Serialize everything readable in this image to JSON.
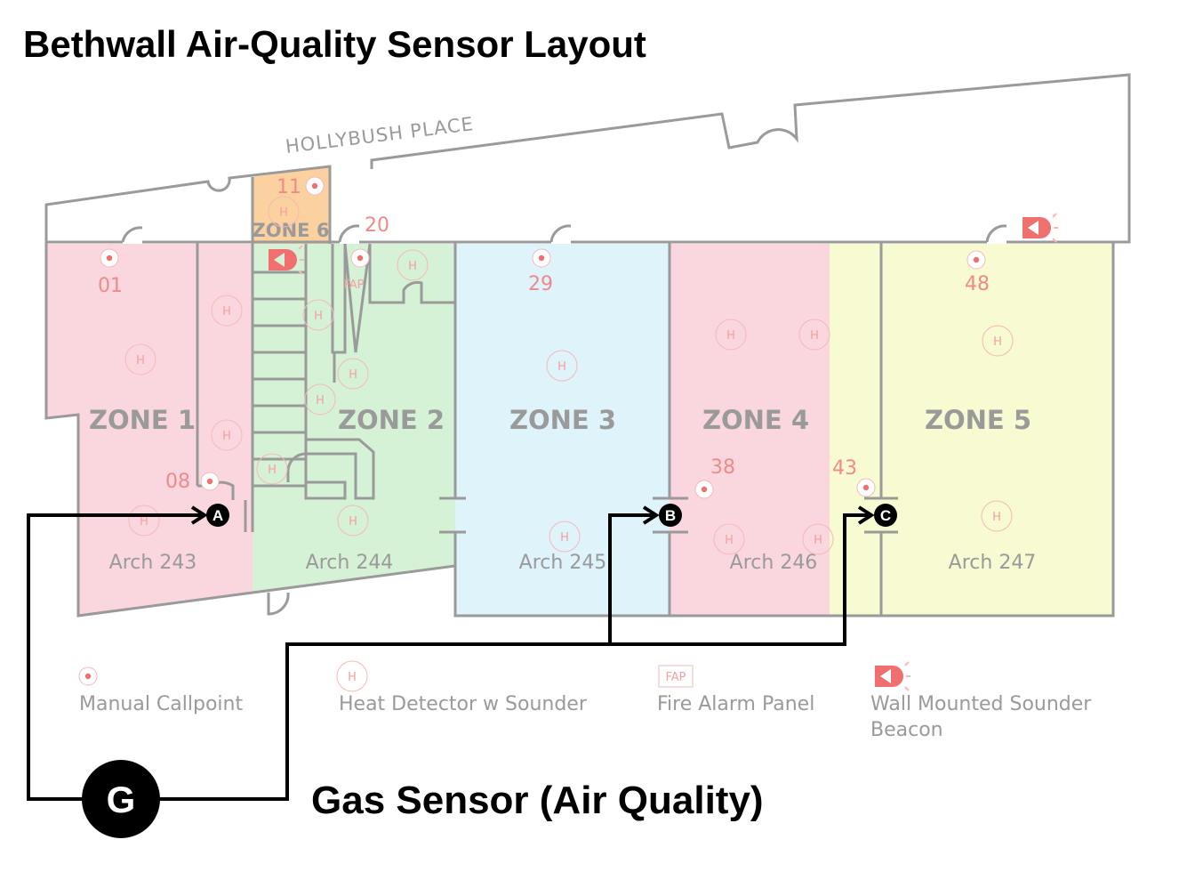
{
  "title": "Bethwall Air-Quality Sensor Layout",
  "street": "HOLLYBUSH PLACE",
  "zones": [
    {
      "label": "ZONE 1",
      "color": "#fad7de"
    },
    {
      "label": "ZONE 2",
      "color": "#d6f2d6"
    },
    {
      "label": "ZONE 3",
      "color": "#dff3fa"
    },
    {
      "label": "ZONE 4",
      "color": "#fad7de"
    },
    {
      "label": "ZONE 5",
      "color": "#f8fad2"
    },
    {
      "label": "ZONE 6",
      "color": "#fbd19f"
    }
  ],
  "arches": [
    "Arch 243",
    "Arch 244",
    "Arch 245",
    "Arch 246",
    "Arch 247"
  ],
  "callpoint_numbers": [
    "01",
    "08",
    "11",
    "20",
    "29",
    "38",
    "43",
    "48"
  ],
  "heat_detector_mark": "H",
  "fap_mark": "FAP",
  "sensors": [
    {
      "label": "A",
      "name": "sensor-a"
    },
    {
      "label": "B",
      "name": "sensor-b"
    },
    {
      "label": "C",
      "name": "sensor-c"
    }
  ],
  "gas_sensor": {
    "symbol": "G",
    "label": "Gas Sensor (Air Quality)"
  },
  "legend": {
    "manual_callpoint": "Manual Callpoint",
    "heat_detector": "Heat Detector w Sounder",
    "fire_alarm_panel": "Fire Alarm Panel",
    "sounder_beacon_line1": "Wall Mounted Sounder",
    "sounder_beacon_line2": "Beacon"
  },
  "colors": {
    "wall": "#9a9a9a",
    "detector": "#f08a8a",
    "wire": "#000000"
  }
}
